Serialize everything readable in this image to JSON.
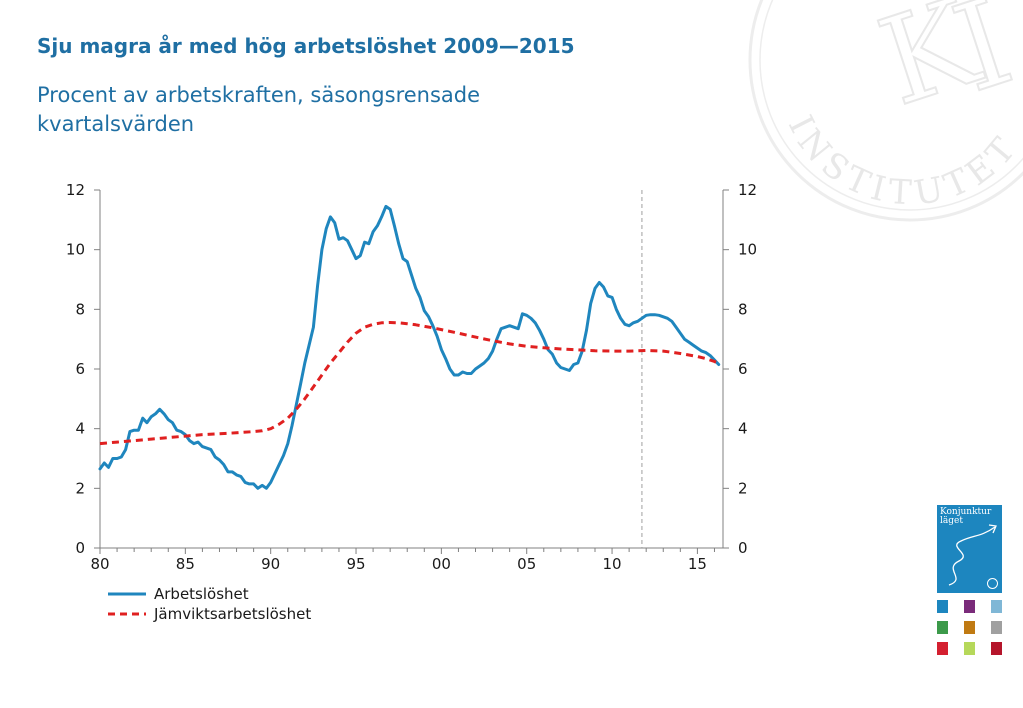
{
  "title": "Sju magra år med hög arbetslöshet 2009—2015",
  "subtitle": "Procent av arbetskraften, säsongsrensade kvartalsvärden",
  "seal_text": "INSTITUTET",
  "cover_title": "Konjunktur\nläget",
  "colors": {
    "title": "#1f6fa3",
    "unemployment": "#1f86be",
    "equilibrium": "#e02020",
    "axis": "#808080",
    "cover": "#1d86bf",
    "thumbs": [
      "#1d86bf",
      "#7a2b7a",
      "#7fb7d6",
      "#3c9a4a",
      "#c07a12",
      "#a0a0a0",
      "#d42030",
      "#b6d85a",
      "#b5152b"
    ]
  },
  "chart_data": {
    "type": "line",
    "title": "",
    "xlabel": "",
    "ylabel": "",
    "x_range": [
      1980,
      2016.5
    ],
    "xticks": [
      1980,
      1985,
      1990,
      1995,
      2000,
      2005,
      2010,
      2015
    ],
    "xtick_labels": [
      "80",
      "85",
      "90",
      "95",
      "00",
      "05",
      "10",
      "15"
    ],
    "ylim": [
      0,
      12
    ],
    "yticks": [
      0,
      2,
      4,
      6,
      8,
      10,
      12
    ],
    "y_axis_left": true,
    "y_axis_right": true,
    "grid": false,
    "vertical_reference_line_x": 2011.75,
    "legend_position": "bottom-left",
    "series": [
      {
        "name": "Arbetslöshet",
        "style": "solid",
        "points": [
          [
            1980.0,
            2.65
          ],
          [
            1980.25,
            2.85
          ],
          [
            1980.5,
            2.7
          ],
          [
            1980.75,
            3.0
          ],
          [
            1981.0,
            3.0
          ],
          [
            1981.25,
            3.05
          ],
          [
            1981.5,
            3.3
          ],
          [
            1981.75,
            3.9
          ],
          [
            1982.0,
            3.95
          ],
          [
            1982.25,
            3.95
          ],
          [
            1982.5,
            4.35
          ],
          [
            1982.75,
            4.2
          ],
          [
            1983.0,
            4.4
          ],
          [
            1983.25,
            4.5
          ],
          [
            1983.5,
            4.65
          ],
          [
            1983.75,
            4.5
          ],
          [
            1984.0,
            4.3
          ],
          [
            1984.25,
            4.2
          ],
          [
            1984.5,
            3.95
          ],
          [
            1984.75,
            3.9
          ],
          [
            1985.0,
            3.8
          ],
          [
            1985.25,
            3.6
          ],
          [
            1985.5,
            3.5
          ],
          [
            1985.75,
            3.55
          ],
          [
            1986.0,
            3.4
          ],
          [
            1986.25,
            3.35
          ],
          [
            1986.5,
            3.3
          ],
          [
            1986.75,
            3.05
          ],
          [
            1987.0,
            2.95
          ],
          [
            1987.25,
            2.8
          ],
          [
            1987.5,
            2.55
          ],
          [
            1987.75,
            2.55
          ],
          [
            1988.0,
            2.45
          ],
          [
            1988.25,
            2.4
          ],
          [
            1988.5,
            2.2
          ],
          [
            1988.75,
            2.15
          ],
          [
            1989.0,
            2.15
          ],
          [
            1989.25,
            2.0
          ],
          [
            1989.5,
            2.1
          ],
          [
            1989.75,
            2.0
          ],
          [
            1990.0,
            2.2
          ],
          [
            1990.25,
            2.5
          ],
          [
            1990.5,
            2.8
          ],
          [
            1990.75,
            3.1
          ],
          [
            1991.0,
            3.5
          ],
          [
            1991.25,
            4.1
          ],
          [
            1991.5,
            4.8
          ],
          [
            1991.75,
            5.5
          ],
          [
            1992.0,
            6.2
          ],
          [
            1992.25,
            6.8
          ],
          [
            1992.5,
            7.4
          ],
          [
            1992.75,
            8.8
          ],
          [
            1993.0,
            10.0
          ],
          [
            1993.25,
            10.7
          ],
          [
            1993.5,
            11.1
          ],
          [
            1993.75,
            10.9
          ],
          [
            1994.0,
            10.35
          ],
          [
            1994.25,
            10.4
          ],
          [
            1994.5,
            10.3
          ],
          [
            1994.75,
            10.0
          ],
          [
            1995.0,
            9.7
          ],
          [
            1995.25,
            9.8
          ],
          [
            1995.5,
            10.25
          ],
          [
            1995.75,
            10.2
          ],
          [
            1996.0,
            10.6
          ],
          [
            1996.25,
            10.8
          ],
          [
            1996.5,
            11.1
          ],
          [
            1996.75,
            11.45
          ],
          [
            1997.0,
            11.35
          ],
          [
            1997.25,
            10.8
          ],
          [
            1997.5,
            10.2
          ],
          [
            1997.75,
            9.7
          ],
          [
            1998.0,
            9.6
          ],
          [
            1998.25,
            9.15
          ],
          [
            1998.5,
            8.7
          ],
          [
            1998.75,
            8.4
          ],
          [
            1999.0,
            7.95
          ],
          [
            1999.25,
            7.75
          ],
          [
            1999.5,
            7.45
          ],
          [
            1999.75,
            7.1
          ],
          [
            2000.0,
            6.65
          ],
          [
            2000.25,
            6.35
          ],
          [
            2000.5,
            6.0
          ],
          [
            2000.75,
            5.8
          ],
          [
            2001.0,
            5.8
          ],
          [
            2001.25,
            5.9
          ],
          [
            2001.5,
            5.85
          ],
          [
            2001.75,
            5.85
          ],
          [
            2002.0,
            6.0
          ],
          [
            2002.25,
            6.1
          ],
          [
            2002.5,
            6.2
          ],
          [
            2002.75,
            6.35
          ],
          [
            2003.0,
            6.6
          ],
          [
            2003.25,
            7.0
          ],
          [
            2003.5,
            7.35
          ],
          [
            2003.75,
            7.4
          ],
          [
            2004.0,
            7.45
          ],
          [
            2004.25,
            7.4
          ],
          [
            2004.5,
            7.35
          ],
          [
            2004.75,
            7.85
          ],
          [
            2005.0,
            7.8
          ],
          [
            2005.25,
            7.7
          ],
          [
            2005.5,
            7.55
          ],
          [
            2005.75,
            7.3
          ],
          [
            2006.0,
            7.0
          ],
          [
            2006.25,
            6.65
          ],
          [
            2006.5,
            6.5
          ],
          [
            2006.75,
            6.2
          ],
          [
            2007.0,
            6.05
          ],
          [
            2007.25,
            6.0
          ],
          [
            2007.5,
            5.95
          ],
          [
            2007.75,
            6.15
          ],
          [
            2008.0,
            6.2
          ],
          [
            2008.25,
            6.6
          ],
          [
            2008.5,
            7.3
          ],
          [
            2008.75,
            8.2
          ],
          [
            2009.0,
            8.7
          ],
          [
            2009.25,
            8.9
          ],
          [
            2009.5,
            8.75
          ],
          [
            2009.75,
            8.45
          ],
          [
            2010.0,
            8.4
          ],
          [
            2010.25,
            8.0
          ],
          [
            2010.5,
            7.7
          ],
          [
            2010.75,
            7.5
          ],
          [
            2011.0,
            7.45
          ],
          [
            2011.25,
            7.55
          ],
          [
            2011.5,
            7.6
          ],
          [
            2011.75,
            7.7
          ],
          [
            2012.0,
            7.8
          ],
          [
            2012.25,
            7.82
          ],
          [
            2012.5,
            7.82
          ],
          [
            2012.75,
            7.8
          ],
          [
            2013.0,
            7.75
          ],
          [
            2013.25,
            7.7
          ],
          [
            2013.5,
            7.6
          ],
          [
            2013.75,
            7.4
          ],
          [
            2014.0,
            7.2
          ],
          [
            2014.25,
            7.0
          ],
          [
            2014.5,
            6.9
          ],
          [
            2014.75,
            6.8
          ],
          [
            2015.0,
            6.7
          ],
          [
            2015.25,
            6.6
          ],
          [
            2015.5,
            6.55
          ],
          [
            2015.75,
            6.45
          ],
          [
            2016.0,
            6.3
          ],
          [
            2016.25,
            6.15
          ]
        ]
      },
      {
        "name": "Jämviktsarbetslöshet",
        "style": "dashed",
        "points": [
          [
            1980.0,
            3.5
          ],
          [
            1981.0,
            3.55
          ],
          [
            1982.0,
            3.6
          ],
          [
            1983.0,
            3.65
          ],
          [
            1984.0,
            3.7
          ],
          [
            1985.0,
            3.75
          ],
          [
            1986.0,
            3.8
          ],
          [
            1987.0,
            3.83
          ],
          [
            1988.0,
            3.86
          ],
          [
            1989.0,
            3.9
          ],
          [
            1989.5,
            3.93
          ],
          [
            1990.0,
            4.0
          ],
          [
            1990.5,
            4.15
          ],
          [
            1991.0,
            4.35
          ],
          [
            1991.5,
            4.65
          ],
          [
            1992.0,
            5.0
          ],
          [
            1992.5,
            5.4
          ],
          [
            1993.0,
            5.8
          ],
          [
            1993.5,
            6.2
          ],
          [
            1994.0,
            6.55
          ],
          [
            1994.5,
            6.9
          ],
          [
            1995.0,
            7.2
          ],
          [
            1995.5,
            7.4
          ],
          [
            1996.0,
            7.5
          ],
          [
            1996.5,
            7.55
          ],
          [
            1997.0,
            7.56
          ],
          [
            1997.5,
            7.55
          ],
          [
            1998.0,
            7.52
          ],
          [
            1998.5,
            7.48
          ],
          [
            1999.0,
            7.43
          ],
          [
            1999.5,
            7.38
          ],
          [
            2000.0,
            7.32
          ],
          [
            2001.0,
            7.2
          ],
          [
            2002.0,
            7.07
          ],
          [
            2003.0,
            6.95
          ],
          [
            2004.0,
            6.84
          ],
          [
            2005.0,
            6.76
          ],
          [
            2006.0,
            6.71
          ],
          [
            2007.0,
            6.67
          ],
          [
            2008.0,
            6.64
          ],
          [
            2009.0,
            6.61
          ],
          [
            2010.0,
            6.6
          ],
          [
            2011.0,
            6.6
          ],
          [
            2012.0,
            6.62
          ],
          [
            2013.0,
            6.6
          ],
          [
            2014.0,
            6.52
          ],
          [
            2015.0,
            6.42
          ],
          [
            2015.5,
            6.35
          ],
          [
            2016.0,
            6.25
          ],
          [
            2016.25,
            6.18
          ]
        ]
      }
    ]
  }
}
